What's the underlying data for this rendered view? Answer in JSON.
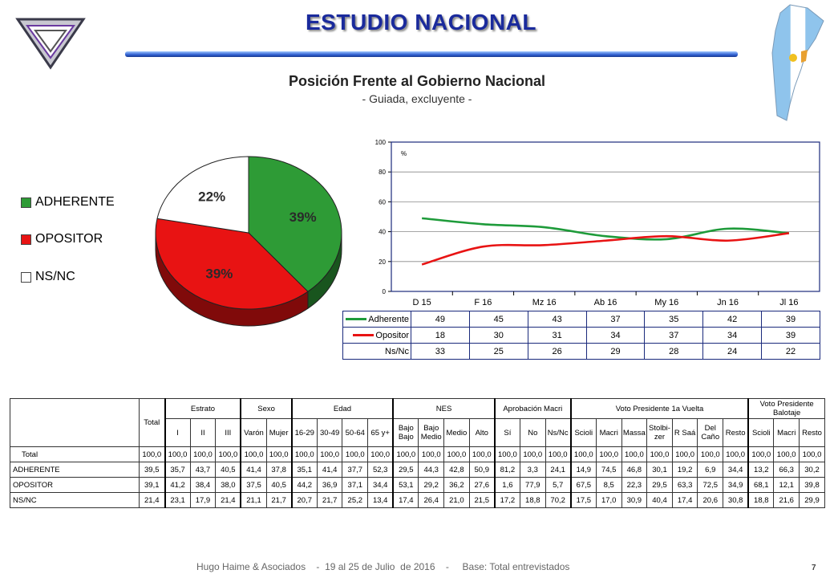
{
  "header": {
    "title": "ESTUDIO NACIONAL"
  },
  "subtitle": "Posición Frente al Gobierno Nacional",
  "subnote": "- Guiada, excluyente -",
  "colors": {
    "adherente": "#2e9b36",
    "opositor": "#e81313",
    "nsnc": "#ffffff",
    "title": "#1a2a9c",
    "frame": "#1a2a7c"
  },
  "footer": {
    "text": "Hugo Haime & Asociados    -  19 al 25 de Julio  de 2016    -     Base: Total entrevistados",
    "page": "7"
  },
  "chart_data": [
    {
      "type": "pie",
      "labels": [
        "ADHERENTE",
        "OPOSITOR",
        "NS/NC"
      ],
      "values": [
        39,
        39,
        22
      ],
      "data_labels": [
        "39%",
        "39%",
        "22%"
      ],
      "legend": "left"
    },
    {
      "type": "line",
      "categories": [
        "D 15",
        "F 16",
        "Mz 16",
        "Ab 16",
        "My 16",
        "Jn 16",
        "Jl 16"
      ],
      "ylabel": "%",
      "ylim": [
        0,
        100
      ],
      "yticks": [
        "0",
        "20",
        "40",
        "60",
        "80",
        "100"
      ],
      "series": [
        {
          "name": "Adherente",
          "values": [
            49,
            45,
            43,
            37,
            35,
            42,
            39
          ],
          "color": "#1e9b3a"
        },
        {
          "name": "Opositor",
          "values": [
            18,
            30,
            31,
            34,
            37,
            34,
            39
          ],
          "color": "#e81313"
        }
      ],
      "table_rows": [
        {
          "name": "Adherente",
          "values": [
            "49",
            "45",
            "43",
            "37",
            "35",
            "42",
            "39"
          ]
        },
        {
          "name": "Opositor",
          "values": [
            "18",
            "30",
            "31",
            "34",
            "37",
            "34",
            "39"
          ]
        },
        {
          "name": "Ns/Nc",
          "values": [
            "33",
            "25",
            "26",
            "29",
            "28",
            "24",
            "22"
          ]
        }
      ]
    },
    {
      "type": "table",
      "total_label": "Total",
      "groups": [
        {
          "name": "",
          "cols": [
            ""
          ]
        },
        {
          "name": "Estrato",
          "cols": [
            "I",
            "II",
            "III"
          ]
        },
        {
          "name": "Sexo",
          "cols": [
            "Varón",
            "Mujer"
          ]
        },
        {
          "name": "Edad",
          "cols": [
            "16-29",
            "30-49",
            "50-64",
            "65 y+"
          ]
        },
        {
          "name": "NES",
          "cols": [
            "Bajo Bajo",
            "Bajo Medio",
            "Medio",
            "Alto"
          ]
        },
        {
          "name": "Aprobación Macri",
          "cols": [
            "Sí",
            "No",
            "Ns/Nc"
          ]
        },
        {
          "name": "Voto Presidente 1a Vuelta",
          "cols": [
            "Scioli",
            "Macri",
            "Massa",
            "Stolbi-zer",
            "R Saá",
            "Del Caño",
            "Resto"
          ]
        },
        {
          "name": "Voto Presidente Balotaje",
          "cols": [
            "Scioli",
            "Macri",
            "Resto"
          ]
        }
      ],
      "rows": [
        {
          "label": "Total",
          "values": [
            "100,0",
            "100,0",
            "100,0",
            "100,0",
            "100,0",
            "100,0",
            "100,0",
            "100,0",
            "100,0",
            "100,0",
            "100,0",
            "100,0",
            "100,0",
            "100,0",
            "100,0",
            "100,0",
            "100,0",
            "100,0",
            "100,0",
            "100,0",
            "100,0",
            "100,0",
            "100,0",
            "100,0",
            "100,0",
            "100,0",
            "100,0"
          ]
        },
        {
          "label": "ADHERENTE",
          "values": [
            "39,5",
            "35,7",
            "43,7",
            "40,5",
            "41,4",
            "37,8",
            "35,1",
            "41,4",
            "37,7",
            "52,3",
            "29,5",
            "44,3",
            "42,8",
            "50,9",
            "81,2",
            "3,3",
            "24,1",
            "14,9",
            "74,5",
            "46,8",
            "30,1",
            "19,2",
            "6,9",
            "34,4",
            "13,2",
            "66,3",
            "30,2"
          ]
        },
        {
          "label": "OPOSITOR",
          "values": [
            "39,1",
            "41,2",
            "38,4",
            "38,0",
            "37,5",
            "40,5",
            "44,2",
            "36,9",
            "37,1",
            "34,4",
            "53,1",
            "29,2",
            "36,2",
            "27,6",
            "1,6",
            "77,9",
            "5,7",
            "67,5",
            "8,5",
            "22,3",
            "29,5",
            "63,3",
            "72,5",
            "34,9",
            "68,1",
            "12,1",
            "39,8"
          ]
        },
        {
          "label": "NS/NC",
          "values": [
            "21,4",
            "23,1",
            "17,9",
            "21,4",
            "21,1",
            "21,7",
            "20,7",
            "21,7",
            "25,2",
            "13,4",
            "17,4",
            "26,4",
            "21,0",
            "21,5",
            "17,2",
            "18,8",
            "70,2",
            "17,5",
            "17,0",
            "30,9",
            "40,4",
            "17,4",
            "20,6",
            "30,8",
            "18,8",
            "21,6",
            "29,9"
          ]
        }
      ]
    }
  ]
}
